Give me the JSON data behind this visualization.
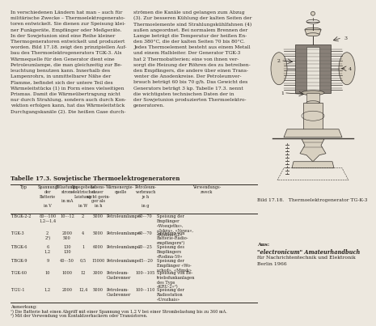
{
  "bg_color": "#ede8df",
  "text_color": "#2a2520",
  "title": "Tabelle 17.3. Sowjetische Thermoelektrogeneratoren",
  "rows": [
    [
      "TBGK-2-2",
      "80···100\n1,2—1,4",
      "10···12",
      "2",
      "5000",
      "Petroleumlampe",
      "60···70",
      "Speisung der\nEmpfänger\n«Wosujeths»,\n«Iskra», «Newa»,\n«Rodina-52»"
    ],
    [
      "TGK-3",
      "2\n2¹)",
      "2000\n500",
      "4",
      "5000",
      "Petroleumlampe",
      "60···70",
      "Speisung von\nBatterie-Radio-\nempfängern²)"
    ],
    [
      "TBGK-6",
      "6\n1,2",
      "130\n130",
      "1",
      "6000",
      "Petroleumlampe",
      "20···25",
      "Speisung des\nEmpfängers\n«Rodina-59»"
    ],
    [
      "TBGK-9",
      "9",
      "40···50",
      "0,5",
      "15000",
      "Petroleumlampe",
      "15···20",
      "Speisung der\nEmpfänger «Wo-\nschod», «Minsk»"
    ],
    [
      "TGK-60",
      "10",
      "1000",
      "12",
      "3000",
      "Petroleum-\nGasbrenner",
      "100···105",
      "Speisung von Be-\ntriebsfunkanlagen\ndes Typs\n«KRU-2»²)"
    ],
    [
      "TGU-1",
      "1,2",
      "2000",
      "12,4",
      "5000",
      "Petroleum-\nGasbrenner",
      "100···110",
      "Speisung der\nRadiostation\n«Urozhais»"
    ]
  ],
  "footnotes": "Anmerkung:\n¹) Die Batterie hat einen Abgriff mit einer Spannung von 1,2 V bei einer Strombelastung bis zu 360 mA.\n²) Mit der Verwendung von Kontaktzerhackern oder Transistoren.",
  "image_caption": "Bild 17.18.   Thermoelektrogenerator TG-K-3",
  "source_lines": [
    "Aus:",
    "\"electronicum\" Amateurhandbuch",
    "für Nachrichtentechnik und Elektronik",
    "Berlin 1966"
  ],
  "col1_lines": [
    "In verschiedenen Ländern hat man – auch für",
    "militärische Zwecke – Thermoelektrogenerato-",
    "toren entwickelt. Sie dienen zur Speisung klei-",
    "ner Funkgeräte, Empfänger oder Meßgeräte.",
    "In der Sowjetunion sind eine Reihe kleiner",
    "Thermogeneratoren entwickelt und produziert",
    "worden. Bild 17.18. zeigt den prinzipiellen Auf-",
    "bau des Thermoelektrogenerators TGK-3. Als",
    "Wärmequelle für den Generator dient eine",
    "Petroleumlampe, die man gleichzeitig zur Be-",
    "leuchtung benutzen kann. Innerhalb des",
    "Lampenrohrs, in unmittelbarer Nähe der",
    "Flamme, befindet sich der untere Teil des",
    "Wärmeleitstücks (1) in Form eines vielseitigen",
    "Prismas. Damit die Wärmeübertragung nicht",
    "nur durch Strahlung, sondern auch durch Kon-",
    "vektion erfolgen kann, hat das Wärmeleitstück",
    "Durchgangskanäle (2). Die heißen Gase durch-"
  ],
  "col2_lines": [
    "strömen die Kanäle und gelangen zum Abzug",
    "(3). Zur besseren Kühlung der kalten Seiten der",
    "Thermoelemente sind Strahlungskühlfahnen (4)",
    "außen angeordnet. Bei normalem Brennen der",
    "Lampe beträgt die Temperatur der heißen En-",
    "den 380°C, die der kalten Seiten 70 bis 80°C.",
    "Jedes Thermoelement besteht aus einem Metall",
    "und einem Halbleiter. Der Generator TGK-3",
    "hat 2 Thermobatterien; eine von ihnen ver-",
    "sorgt die Heizung der Röhren des zu betreiben-",
    "den Empfängers, die andere über einen Trans-",
    "venter die Anodenkreise. Der Petroleumver-",
    "brauch beträgt 60 bis 70 g/h. Das Gewicht des",
    "Generators beträgt 3 kp. Tabelle 17.3. nennt",
    "die wichtigsten technischen Daten der in",
    "der Sowjetunion produzierten Thermoelektro-",
    "generatoren."
  ]
}
